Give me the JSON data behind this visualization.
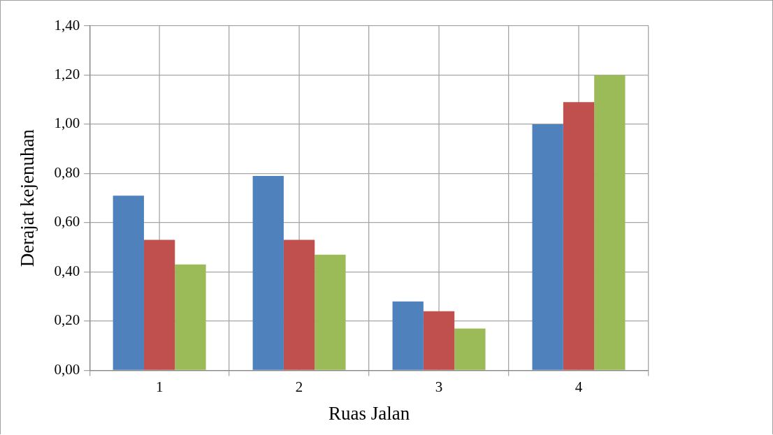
{
  "chart_data": {
    "type": "bar",
    "xlabel": "Ruas Jalan",
    "ylabel": "Derajat kejenuhan",
    "categories": [
      "1",
      "2",
      "3",
      "4"
    ],
    "series": [
      {
        "color": "#4f81bd",
        "values": [
          0.71,
          0.79,
          0.28,
          1.0
        ]
      },
      {
        "color": "#c0504d",
        "values": [
          0.53,
          0.53,
          0.24,
          1.09
        ]
      },
      {
        "color": "#9bbb59",
        "values": [
          0.43,
          0.47,
          0.17,
          1.2
        ]
      }
    ],
    "ylim": [
      0,
      1.4
    ],
    "yticks": [
      {
        "value": 0,
        "label": "0,00"
      },
      {
        "value": 0.2,
        "label": "0,20"
      },
      {
        "value": 0.4,
        "label": "0,40"
      },
      {
        "value": 0.6,
        "label": "0,60"
      },
      {
        "value": 0.8,
        "label": "0,80"
      },
      {
        "value": 1.0,
        "label": "1,00"
      },
      {
        "value": 1.2,
        "label": "1,20"
      },
      {
        "value": 1.4,
        "label": "1,40"
      }
    ],
    "grid": true,
    "legend": false
  }
}
